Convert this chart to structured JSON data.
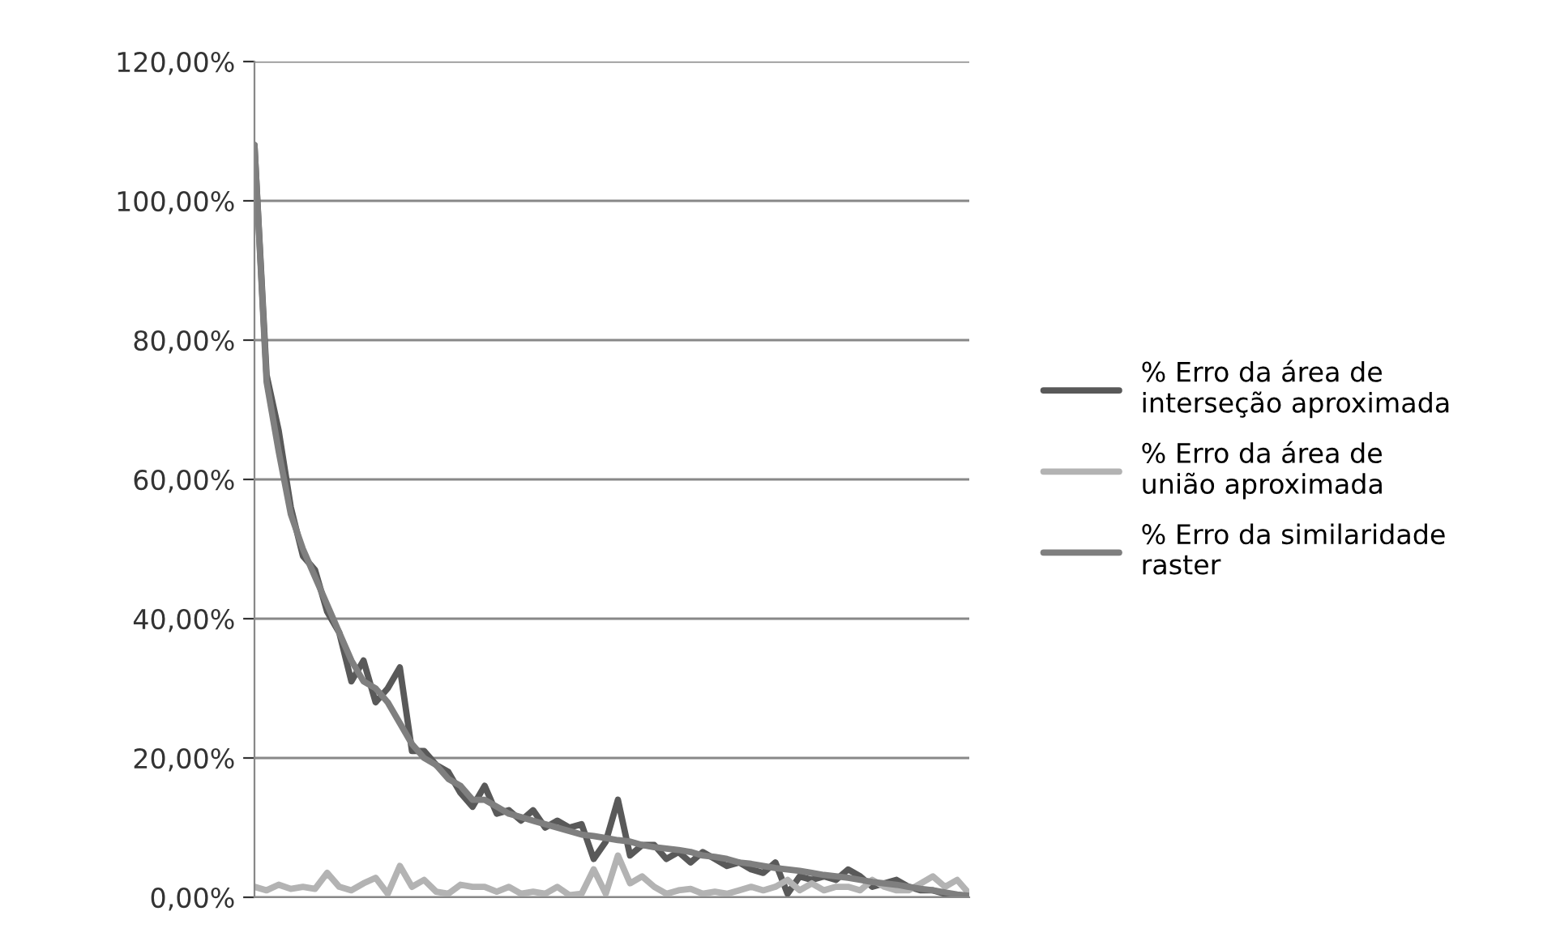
{
  "chart_data": {
    "type": "line",
    "categories": [
      null,
      null,
      null,
      null,
      null,
      null,
      null,
      null,
      null,
      null,
      null,
      null,
      null,
      null,
      null,
      null,
      null,
      null,
      null,
      null,
      null,
      null,
      null,
      null,
      null,
      null,
      null,
      null,
      null,
      null,
      null,
      null,
      null,
      null,
      null,
      null,
      null,
      null,
      null,
      null,
      null,
      null,
      null,
      null,
      null,
      null,
      null,
      null,
      null,
      null,
      null,
      null,
      null,
      null,
      null,
      null,
      null,
      null,
      null,
      null
    ],
    "series": [
      {
        "name": "% Erro da área de\ninterseção aproximada",
        "color": "#595959",
        "values": [
          108,
          75,
          67,
          56,
          49,
          47,
          41,
          38,
          31,
          34,
          28,
          30,
          33,
          21,
          21,
          19,
          18,
          15,
          13,
          16,
          12,
          12.5,
          11,
          12.5,
          10,
          11,
          10,
          10.5,
          5.5,
          8,
          14,
          6,
          7.5,
          7.5,
          5.5,
          6.5,
          5,
          6.5,
          5.5,
          4.5,
          5,
          4,
          3.5,
          5,
          0.5,
          3,
          2.5,
          3,
          2.5,
          4,
          3,
          1.5,
          2,
          2.5,
          1.5,
          1,
          1,
          0.5,
          0.3,
          0.2
        ]
      },
      {
        "name": "% Erro da área de\nunião aproximada",
        "color": "#b3b3b3",
        "values": [
          1.5,
          1,
          1.8,
          1.2,
          1.5,
          1.2,
          3.5,
          1.5,
          1,
          2,
          2.8,
          0.5,
          4.5,
          1.5,
          2.5,
          0.8,
          0.5,
          1.8,
          1.5,
          1.5,
          0.8,
          1.5,
          0.5,
          0.8,
          0.5,
          1.5,
          0.3,
          0.5,
          4,
          0.5,
          6,
          2,
          3,
          1.5,
          0.5,
          1,
          1.2,
          0.5,
          0.8,
          0.5,
          1,
          1.5,
          1,
          1.5,
          2.5,
          1,
          2,
          1,
          1.5,
          1.5,
          1,
          2.5,
          1.5,
          1,
          1,
          2,
          3,
          1.5,
          2.5,
          0.5
        ]
      },
      {
        "name": "% Erro da similaridade\nraster",
        "color": "#7f7f7f",
        "values": [
          108,
          74,
          64,
          55,
          50,
          46,
          42,
          38,
          34,
          31,
          30,
          28,
          25,
          22,
          20,
          19,
          17,
          16,
          14,
          14,
          13,
          12,
          11.5,
          11,
          10.5,
          10,
          9.5,
          9,
          8.8,
          8.5,
          8.2,
          8,
          7.5,
          7.2,
          7,
          6.8,
          6.5,
          6,
          5.8,
          5.5,
          5,
          4.8,
          4.5,
          4.2,
          4,
          3.8,
          3.5,
          3.2,
          3,
          2.8,
          2.5,
          2.2,
          2,
          1.8,
          1.5,
          1.2,
          1,
          0.7,
          0.4,
          0.2
        ]
      }
    ],
    "ylim": [
      0,
      120
    ],
    "yticks": [
      {
        "value": 0,
        "label": "0,00%"
      },
      {
        "value": 20,
        "label": "20,00%"
      },
      {
        "value": 40,
        "label": "40,00%"
      },
      {
        "value": 60,
        "label": "60,00%"
      },
      {
        "value": 80,
        "label": "80,00%"
      },
      {
        "value": 100,
        "label": "100,00%"
      },
      {
        "value": 120,
        "label": "120,00%"
      }
    ],
    "tick_labels": "y",
    "grid": "y",
    "legend": "right",
    "marker": "none",
    "line_style": "solid"
  }
}
